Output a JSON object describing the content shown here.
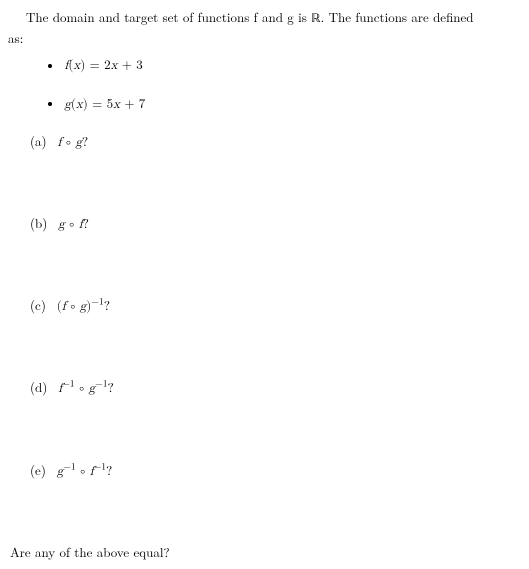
{
  "intro": {
    "line1_pre": "The domain and target set of functions f and g is ",
    "real_symbol": "ℝ",
    "line1_post": ". The functions are defined",
    "line2": "as:"
  },
  "defs": {
    "f": {
      "lhs": "f",
      "arg": "x",
      "rhs_coef": "2",
      "rhs_var": "x",
      "rhs_const": "3"
    },
    "g": {
      "lhs": "g",
      "arg": "x",
      "rhs_coef": "5",
      "rhs_var": "x",
      "rhs_const": "7"
    }
  },
  "questions": {
    "a": {
      "label": "(a)",
      "expr_left": "f",
      "compose": "∘",
      "expr_right": "g",
      "q": "?"
    },
    "b": {
      "label": "(b)",
      "expr_left": "g",
      "compose": "∘",
      "expr_right": "f",
      "q": "?"
    },
    "c": {
      "label": "(c)",
      "open": "(",
      "expr_left": "f",
      "compose": "∘",
      "expr_right": "g",
      "close": ")",
      "sup": "−1",
      "q": "?"
    },
    "d": {
      "label": "(d)",
      "expr_left": "f",
      "sup_left": "−1",
      "compose": "∘",
      "expr_right": "g",
      "sup_right": "−1",
      "q": "?"
    },
    "e": {
      "label": "(e)",
      "expr_left": "g",
      "sup_left": "−1",
      "compose": "∘",
      "expr_right": "f",
      "sup_right": "−1",
      "q": "?"
    }
  },
  "final": "Are any of the above equal?"
}
